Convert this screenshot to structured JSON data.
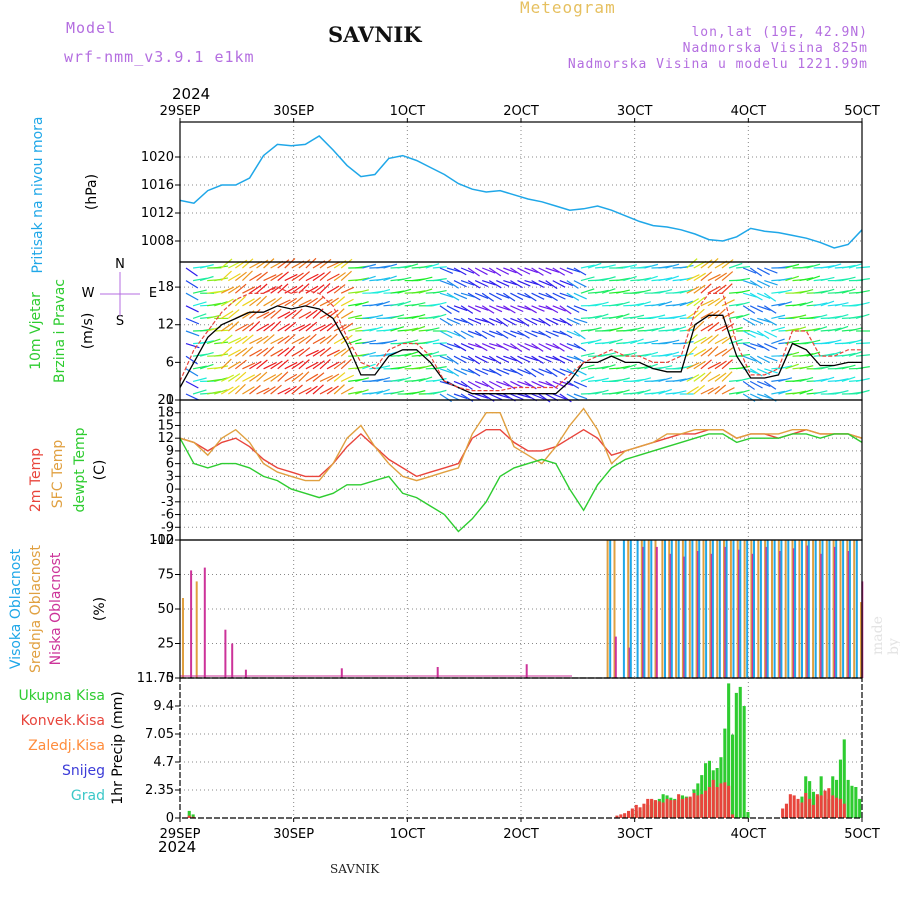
{
  "header": {
    "model_label": "Model",
    "model_name": "wrf-nmm_v3.9.1 e1km",
    "station": "SAVNIK",
    "product": "Meteogram",
    "lonlat": "lon,lat (19E, 42.9N)",
    "altitude": "Nadmorska Visina 825m",
    "model_altitude": "Nadmorska Visina u modelu 1221.99m",
    "year_top": "2024",
    "year_bottom": "2024",
    "footer": "SAVNIK",
    "credit": "made by Angel"
  },
  "colors": {
    "pressure": "#1fa7e8",
    "temp2m": "#e8453c",
    "sfc": "#e0a040",
    "dewpt": "#2ecc30",
    "high": "#1fa7e8",
    "mid": "#e0a040",
    "low": "#cc3399",
    "total_precip": "#2ecc30",
    "conv_precip": "#e8453c"
  },
  "chart_data": [
    {
      "type": "line",
      "title": "Pritisak na nivou mora",
      "ylabel": "(hPa)",
      "x_ticks": [
        "29SEP",
        "30SEP",
        "1OCT",
        "2OCT",
        "3OCT",
        "4OCT",
        "5OCT"
      ],
      "ylim": [
        1005,
        1025
      ],
      "y_ticks": [
        "1008",
        "1012",
        "1016",
        "1020"
      ],
      "series": [
        {
          "values": [
            1013.8,
            1013.4,
            1015.2,
            1016.0,
            1016.0,
            1017.0,
            1020.2,
            1021.8,
            1021.6,
            1021.8,
            1023.0,
            1021.0,
            1018.8,
            1017.2,
            1017.5,
            1019.8,
            1020.2,
            1019.5,
            1018.5,
            1017.5,
            1016.2,
            1015.4,
            1015.0,
            1015.2,
            1014.6,
            1014.0,
            1013.6,
            1013.0,
            1012.4,
            1012.6,
            1013.0,
            1012.4,
            1011.6,
            1010.8,
            1010.2,
            1010.0,
            1009.6,
            1009.0,
            1008.2,
            1008.0,
            1008.6,
            1009.8,
            1009.4,
            1009.2,
            1008.8,
            1008.4,
            1007.8,
            1007.0,
            1007.5,
            1009.6
          ]
        }
      ]
    },
    {
      "type": "line",
      "title_lines": [
        "10m Vjetar",
        "Brzina i Pravac"
      ],
      "ylabel": "(m/s)",
      "compass": [
        "N",
        "E",
        "S",
        "W"
      ],
      "ylim": [
        0,
        22
      ],
      "y_ticks": [
        "0",
        "6",
        "12",
        "18"
      ],
      "series": [
        {
          "values": [
            2,
            6,
            10,
            12,
            13,
            14,
            14,
            15,
            14.5,
            15,
            14.5,
            13,
            9,
            4,
            4,
            7,
            8,
            8,
            6,
            3,
            2,
            1,
            1,
            1,
            1,
            1,
            1,
            1,
            3,
            6,
            6,
            7,
            6,
            6,
            5,
            4.5,
            4.5,
            12,
            13.5,
            13.5,
            7,
            3.5,
            3.5,
            4,
            9,
            8,
            5.5,
            5.5,
            6,
            6
          ]
        },
        {
          "values": [
            3,
            8,
            11,
            14,
            16,
            17,
            17,
            18,
            17,
            17.5,
            17,
            15,
            10,
            6,
            5,
            8,
            9,
            9,
            7,
            3,
            2,
            1.5,
            1.5,
            1.5,
            2,
            2,
            2,
            2,
            4,
            6,
            7,
            8,
            7,
            7,
            6,
            6,
            7,
            14,
            17,
            17,
            9,
            4,
            4,
            5,
            11,
            11,
            7,
            7,
            8,
            8
          ]
        }
      ]
    },
    {
      "type": "line",
      "title_lines": [
        "2m Temp",
        "SFC Temp",
        "dewpt Temp"
      ],
      "ylabel": "(C)",
      "ylim": [
        -12,
        21
      ],
      "y_ticks": [
        "-12",
        "-9",
        "-6",
        "-3",
        "0",
        "3",
        "6",
        "9",
        "12",
        "15",
        "18",
        "21"
      ],
      "series": [
        {
          "name": "2m Temp",
          "values": [
            12,
            11,
            9,
            11,
            12,
            10,
            7,
            5,
            4,
            3,
            3,
            6,
            10,
            13,
            10,
            7,
            5,
            3,
            4,
            5,
            6,
            12,
            14,
            14,
            11,
            9,
            9,
            10,
            12,
            14,
            12,
            8,
            9,
            10,
            11,
            12,
            13,
            13,
            14,
            14,
            12,
            13,
            13,
            12,
            13,
            14,
            13,
            13,
            13,
            12
          ]
        },
        {
          "name": "SFC Temp",
          "values": [
            12,
            11,
            8,
            12,
            14,
            11,
            6,
            4,
            3,
            2,
            2,
            6,
            12,
            15,
            10,
            6,
            3,
            2,
            3,
            4,
            5,
            13,
            18,
            18,
            10,
            8,
            6,
            10,
            15,
            19,
            14,
            6,
            9,
            10,
            11,
            13,
            13,
            14,
            14,
            14,
            12,
            13,
            13,
            13,
            14,
            14,
            13,
            13,
            13,
            12
          ]
        },
        {
          "name": "dewpt Temp",
          "values": [
            12,
            6,
            5,
            6,
            6,
            5,
            3,
            2,
            0,
            -1,
            -2,
            -1,
            1,
            1,
            2,
            3,
            -1,
            -2,
            -4,
            -6,
            -10,
            -7,
            -3,
            3,
            5,
            6,
            7,
            6,
            0,
            -5,
            1,
            5,
            7,
            8,
            9,
            10,
            11,
            12,
            13,
            13,
            11,
            12,
            12,
            12,
            13,
            13,
            12,
            13,
            13,
            11
          ]
        }
      ]
    },
    {
      "type": "bar",
      "title_lines": [
        "Visoka Oblacnost",
        "Srednja Oblacnost",
        "Niska Oblacnost"
      ],
      "ylabel": "(%)",
      "ylim": [
        0,
        100
      ],
      "y_ticks": [
        "0",
        "25",
        "50",
        "75",
        "100"
      ],
      "series": [
        {
          "name": "Srednja Oblacnost",
          "values": [
            58,
            0,
            70,
            0,
            0,
            0,
            0,
            0,
            0,
            0,
            0,
            0,
            0,
            0,
            0,
            0,
            0,
            0,
            0,
            0,
            0,
            0,
            0,
            0,
            0,
            0,
            0,
            0,
            0,
            0,
            0,
            0,
            0,
            0,
            0,
            0,
            0,
            0,
            0,
            0,
            0,
            0,
            0,
            0,
            0,
            0,
            0,
            0,
            0,
            0,
            0,
            0,
            0,
            0,
            0,
            0,
            0,
            0,
            0,
            0,
            0,
            0,
            100,
            100,
            0,
            100,
            0,
            100,
            100,
            100,
            100,
            100,
            100,
            100,
            100,
            100,
            100,
            100,
            100,
            100,
            100,
            100,
            100,
            100,
            100,
            100,
            100,
            100,
            100,
            100,
            100,
            100,
            100,
            100,
            100,
            100,
            100,
            100,
            100,
            55
          ]
        },
        {
          "name": "Niska Oblacnost",
          "values": [
            0,
            78,
            0,
            80,
            0,
            0,
            35,
            25,
            0,
            6,
            0,
            0,
            0,
            0,
            0,
            0,
            0,
            0,
            0,
            0,
            0,
            0,
            0,
            7,
            0,
            0,
            0,
            0,
            0,
            0,
            0,
            0,
            0,
            0,
            0,
            0,
            0,
            8,
            0,
            0,
            0,
            0,
            0,
            0,
            0,
            0,
            0,
            0,
            0,
            0,
            10,
            0,
            0,
            0,
            0,
            0,
            0,
            0,
            0,
            0,
            0,
            0,
            0,
            30,
            0,
            22,
            0,
            95,
            0,
            95,
            0,
            90,
            0,
            88,
            0,
            92,
            0,
            90,
            0,
            95,
            0,
            93,
            0,
            90,
            0,
            95,
            0,
            92,
            0,
            94,
            0,
            96,
            0,
            90,
            0,
            95,
            0,
            92,
            0,
            70
          ]
        },
        {
          "name": "Visoka Oblacnost",
          "values": [
            0,
            0,
            0,
            0,
            0,
            0,
            0,
            0,
            0,
            0,
            0,
            0,
            0,
            0,
            0,
            0,
            0,
            0,
            0,
            0,
            0,
            0,
            0,
            0,
            0,
            0,
            0,
            0,
            0,
            0,
            0,
            0,
            0,
            0,
            0,
            0,
            0,
            0,
            0,
            0,
            0,
            0,
            0,
            0,
            0,
            0,
            0,
            0,
            0,
            0,
            0,
            0,
            0,
            0,
            0,
            0,
            0,
            0,
            0,
            0,
            0,
            0,
            100,
            0,
            100,
            100,
            100,
            100,
            100,
            0,
            100,
            100,
            100,
            100,
            100,
            100,
            100,
            100,
            100,
            100,
            100,
            100,
            100,
            100,
            100,
            100,
            100,
            100,
            100,
            100,
            100,
            100,
            100,
            100,
            100,
            100,
            100,
            100,
            100,
            0
          ]
        }
      ]
    },
    {
      "type": "bar",
      "title_lines": [
        "Ukupna Kisa",
        "Konvek.Kisa",
        "Zaledj.Kisa",
        "Snijeg",
        "Grad"
      ],
      "ylabel": "1hr Precip (mm)",
      "ylim": [
        0,
        11.75
      ],
      "y_ticks": [
        "0",
        "2.35",
        "4.7",
        "7.05",
        "9.4",
        "11.75"
      ],
      "series": [
        {
          "name": "Ukupna Kisa",
          "values": [
            0,
            0,
            0.6,
            0.3,
            0,
            0,
            0,
            0,
            0,
            0,
            0,
            0,
            0,
            0,
            0,
            0,
            0,
            0,
            0,
            0,
            0,
            0,
            0,
            0,
            0,
            0,
            0,
            0,
            0,
            0,
            0,
            0,
            0,
            0,
            0,
            0,
            0,
            0,
            0,
            0,
            0,
            0,
            0,
            0,
            0,
            0,
            0,
            0,
            0,
            0,
            0,
            0,
            0,
            0,
            0,
            0,
            0,
            0,
            0,
            0,
            0,
            0,
            0,
            0,
            0,
            0,
            0,
            0,
            0,
            0,
            0,
            0,
            0,
            0,
            0,
            0,
            0,
            0,
            0,
            0,
            0,
            0,
            0,
            0,
            0,
            0,
            0,
            0,
            0,
            0,
            0,
            0,
            0,
            0,
            0,
            0,
            0,
            0,
            0,
            0,
            0,
            0,
            0,
            0,
            0,
            0,
            0,
            0,
            0,
            0,
            0,
            0,
            0,
            0,
            0,
            0,
            0,
            0.3,
            0.6,
            0.6,
            0.9,
            1.1,
            1.5,
            1.3,
            1.6,
            2.0,
            1.9,
            1.7,
            1.6,
            1.5,
            1.9,
            1.8,
            1.7,
            2.4,
            2.9,
            3.6,
            4.6,
            4.8,
            4.0,
            4.2,
            5.1,
            7.5,
            11.3,
            7.0,
            10.5,
            11.0,
            9.4,
            0.5,
            0,
            0,
            0,
            0,
            0,
            0,
            0,
            0,
            0,
            0,
            0,
            0,
            1.2,
            1.8,
            3.5,
            3.1,
            2.2,
            1.8,
            3.5,
            2.2,
            1.6,
            3.5,
            3.2,
            4.9,
            6.6,
            3.2,
            2.7,
            2.6,
            1.6
          ]
        },
        {
          "name": "Konvek.Kisa",
          "values": [
            0,
            0,
            0.2,
            0.1,
            0,
            0,
            0,
            0,
            0,
            0,
            0,
            0,
            0,
            0,
            0,
            0,
            0,
            0,
            0,
            0,
            0,
            0,
            0,
            0,
            0,
            0,
            0,
            0,
            0,
            0,
            0,
            0,
            0,
            0,
            0,
            0,
            0,
            0,
            0,
            0,
            0,
            0,
            0,
            0,
            0,
            0,
            0,
            0,
            0,
            0,
            0,
            0,
            0,
            0,
            0,
            0,
            0,
            0,
            0,
            0,
            0,
            0,
            0,
            0,
            0,
            0,
            0,
            0,
            0,
            0,
            0,
            0,
            0,
            0,
            0,
            0,
            0,
            0,
            0,
            0,
            0,
            0,
            0,
            0,
            0,
            0,
            0,
            0,
            0,
            0,
            0,
            0,
            0,
            0,
            0,
            0,
            0,
            0,
            0,
            0,
            0,
            0,
            0,
            0,
            0,
            0,
            0,
            0,
            0,
            0,
            0,
            0,
            0,
            0.2,
            0.3,
            0.4,
            0.6,
            0.8,
            1.1,
            0.9,
            1.2,
            1.6,
            1.6,
            1.5,
            1.4,
            1.3,
            1.6,
            1.5,
            1.5,
            2.0,
            1.6,
            1.7,
            1.8,
            2.1,
            1.9,
            2.0,
            2.3,
            2.6,
            3.2,
            2.6,
            2.9,
            3.0,
            2.7,
            0.3,
            0,
            0,
            0,
            0,
            0,
            0,
            0,
            0,
            0,
            0,
            0,
            0,
            0.8,
            1.2,
            2.0,
            1.9,
            1.6,
            1.3,
            2.1,
            1.6,
            1.1,
            2.0,
            1.9,
            2.3,
            2.5,
            1.9,
            1.7,
            1.6,
            1.2
          ]
        }
      ]
    }
  ]
}
